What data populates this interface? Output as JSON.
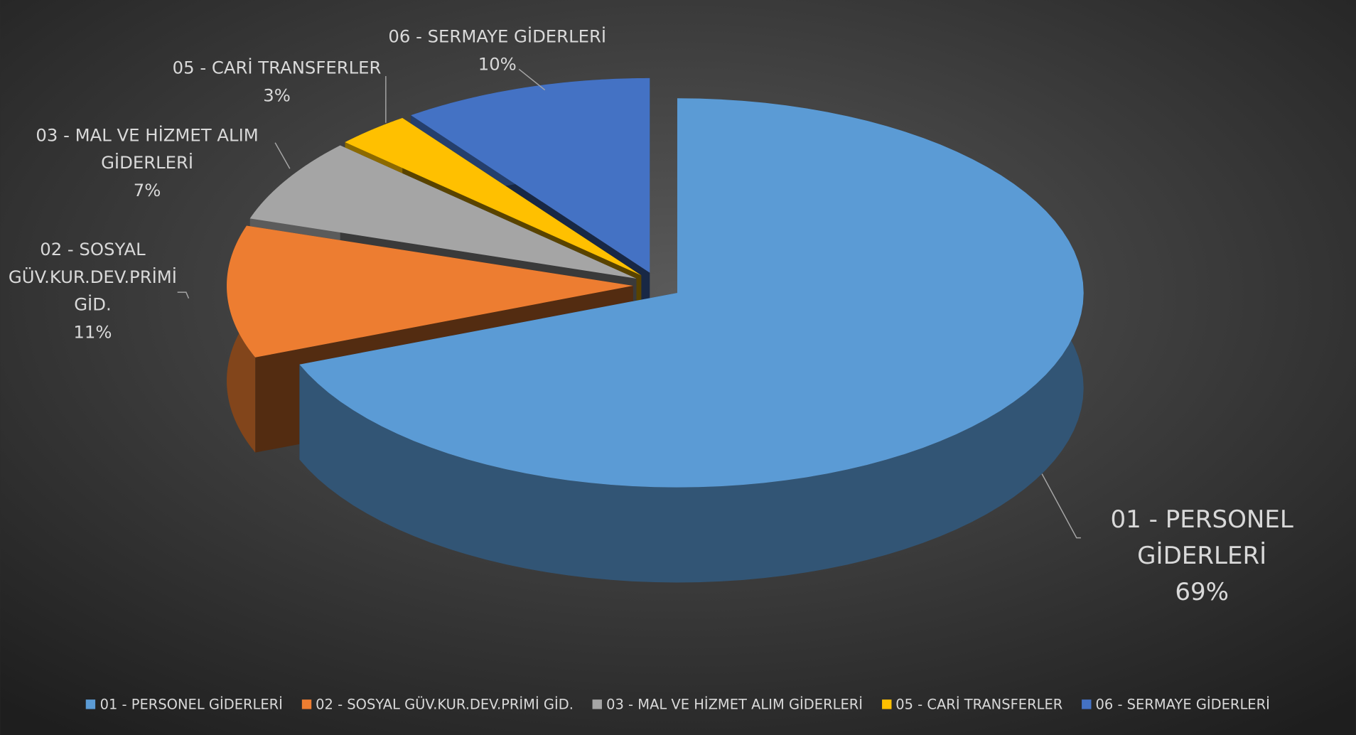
{
  "chart_data": {
    "type": "pie3d",
    "categories": [
      "01 - PERSONEL GİDERLERİ",
      "02 - SOSYAL GÜV.KUR.DEV.PRİMİ GİD.",
      "03 - MAL VE HİZMET ALIM GİDERLERİ",
      "05 - CARİ TRANSFERLER",
      "06 - SERMAYE GİDERLERİ"
    ],
    "values": [
      69,
      11,
      7,
      3,
      10
    ],
    "value_labels": [
      "69%",
      "11%",
      "7%",
      "3%",
      "10%"
    ],
    "colors": [
      "#5b9bd5",
      "#ed7d31",
      "#a5a5a5",
      "#ffc000",
      "#4472c4"
    ],
    "legend": "bottom"
  }
}
